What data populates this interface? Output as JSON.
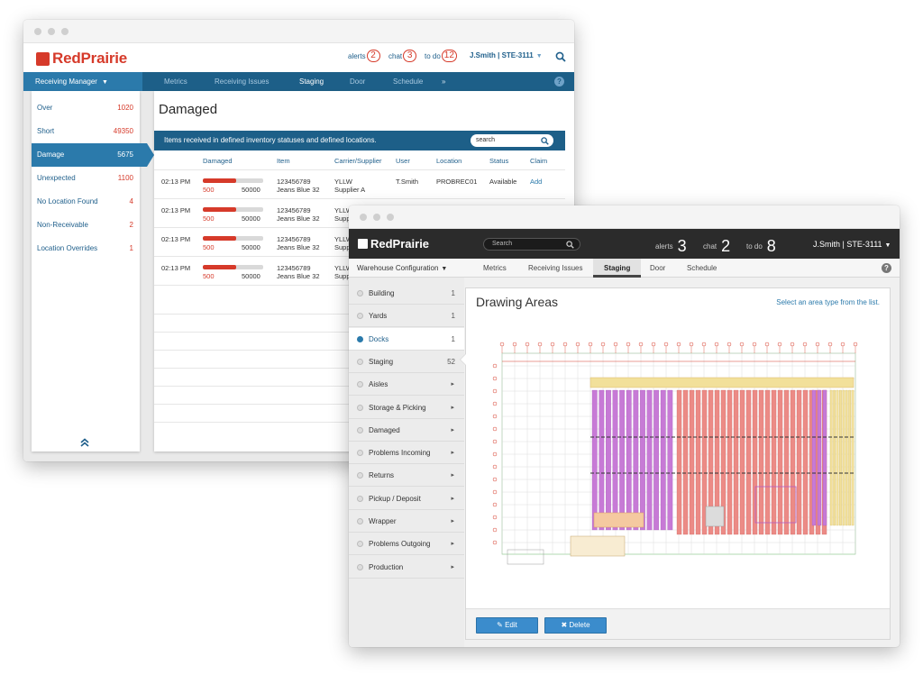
{
  "window1": {
    "brand": "RedPrairie",
    "header": {
      "alerts_label": "alerts",
      "alerts_count": "2",
      "chat_label": "chat",
      "chat_count": "3",
      "todo_label": "to do",
      "todo_count": "12",
      "user": "J.Smith | STE-3111"
    },
    "nav": {
      "dropdown": "Receiving Manager",
      "tabs": [
        "Metrics",
        "Receiving Issues",
        "Staging",
        "Door",
        "Schedule"
      ],
      "active_tab": "Staging",
      "more": "»",
      "help": "?"
    },
    "sidebar": {
      "items": [
        {
          "label": "Over",
          "count": "1020"
        },
        {
          "label": "Short",
          "count": "49350"
        },
        {
          "label": "Damage",
          "count": "5675"
        },
        {
          "label": "Unexpected",
          "count": "1100"
        },
        {
          "label": "No Location Found",
          "count": "4"
        },
        {
          "label": "Non-Receivable",
          "count": "2"
        },
        {
          "label": "Location Overrides",
          "count": "1"
        }
      ],
      "active": "Damage",
      "collapse_icon": "double-chevron-up-icon"
    },
    "main": {
      "title": "Damaged",
      "bar_text": "Items received in defined inventory statuses and defined locations.",
      "search_placeholder": "search",
      "columns": [
        "Damaged",
        "Item",
        "Carrier/Supplier",
        "User",
        "Location",
        "Status",
        "Claim"
      ],
      "rows": [
        {
          "time": "02:13 PM",
          "damaged": "500",
          "total": "50000",
          "fill": 0.55,
          "item_id": "123456789",
          "item_name": "Jeans Blue 32",
          "carrier": "YLLW",
          "supplier": "Supplier A",
          "user": "T.Smith",
          "location": "PROBREC01",
          "status": "Available",
          "claim": "Add"
        },
        {
          "time": "02:13 PM",
          "damaged": "500",
          "total": "50000",
          "fill": 0.55,
          "item_id": "123456789",
          "item_name": "Jeans Blue 32",
          "carrier": "YLLW",
          "supplier": "Supp"
        },
        {
          "time": "02:13 PM",
          "damaged": "500",
          "total": "50000",
          "fill": 0.55,
          "item_id": "123456789",
          "item_name": "Jeans Blue 32",
          "carrier": "YLLW",
          "supplier": "Supp"
        },
        {
          "time": "02:13 PM",
          "damaged": "500",
          "total": "50000",
          "fill": 0.55,
          "item_id": "123456789",
          "item_name": "Jeans Blue 32",
          "carrier": "YLLW",
          "supplier": "Supp"
        }
      ]
    }
  },
  "window2": {
    "brand": "RedPrairie",
    "search_placeholder": "Search",
    "header": {
      "alerts_label": "alerts",
      "alerts_count": "3",
      "chat_label": "chat",
      "chat_count": "2",
      "todo_label": "to do",
      "todo_count": "8",
      "user": "J.Smith | STE-3111"
    },
    "nav": {
      "dropdown": "Warehouse Configuration",
      "tabs": [
        "Metrics",
        "Receiving Issues",
        "Staging",
        "Door",
        "Schedule"
      ],
      "active_tab": "Staging",
      "help": "?"
    },
    "sidebar": {
      "items": [
        {
          "label": "Building",
          "count": "1"
        },
        {
          "label": "Yards",
          "count": "1"
        },
        {
          "label": "Docks",
          "count": "1"
        },
        {
          "label": "Staging",
          "count": "52"
        },
        {
          "label": "Aisles",
          "count": "▸"
        },
        {
          "label": "Storage & Picking",
          "count": "▸"
        },
        {
          "label": "Damaged",
          "count": "▸"
        },
        {
          "label": "Problems Incoming",
          "count": "▸"
        },
        {
          "label": "Returns",
          "count": "▸"
        },
        {
          "label": "Pickup / Deposit",
          "count": "▸"
        },
        {
          "label": "Wrapper",
          "count": "▸"
        },
        {
          "label": "Problems Outgoing",
          "count": "▸"
        },
        {
          "label": "Production",
          "count": "▸"
        }
      ],
      "active": "Docks"
    },
    "panel": {
      "title": "Drawing Areas",
      "hint": "Select an area type from the list.",
      "edit_label": "Edit",
      "delete_label": "Delete"
    }
  },
  "colors": {
    "brand_red": "#d63a2a",
    "nav_blue": "#1d5f88",
    "accent_blue": "#2b7aab",
    "dark_header": "#2b2b2b",
    "rack_magenta": "#c77ad6",
    "rack_salmon": "#ec8b86",
    "rack_yellow": "#f2e09a"
  }
}
